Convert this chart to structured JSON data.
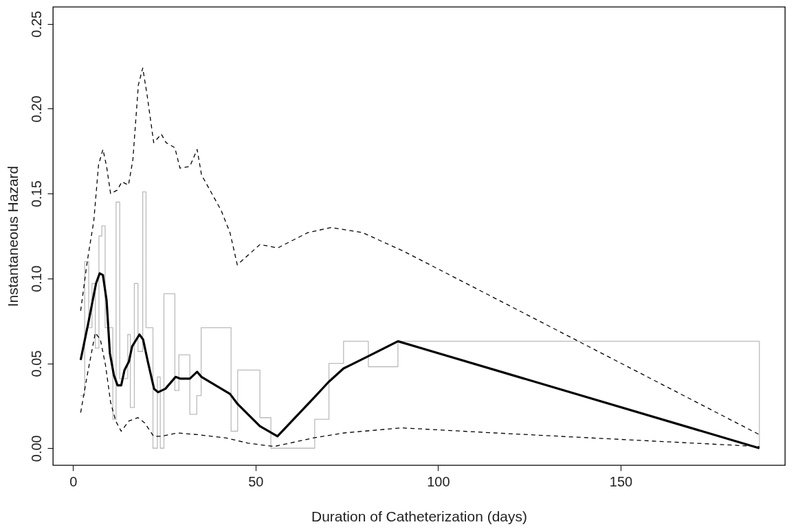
{
  "chart_data": {
    "type": "line",
    "xlabel": "Duration of Catheterization (days)",
    "ylabel": "Instantaneous Hazard",
    "xlim": [
      -5.5,
      195
    ],
    "xticks": [
      0,
      50,
      100,
      150
    ],
    "ylim": [
      -0.01,
      0.26
    ],
    "yticks": [
      {
        "value": 0,
        "label": "0.00"
      },
      {
        "value": 0.05,
        "label": "0.05"
      },
      {
        "value": 0.1,
        "label": "0.10"
      },
      {
        "value": 0.15,
        "label": "0.15"
      },
      {
        "value": 0.2,
        "label": "0.20"
      },
      {
        "value": 0.25,
        "label": "0.25"
      }
    ],
    "grid": false,
    "marker": "none",
    "series": [
      {
        "type": "step",
        "color": "#bbbbbb",
        "line_style": "solid",
        "x": [
          2.1,
          3.2,
          4.3,
          5.2,
          6.1,
          7.1,
          7.9,
          8.8,
          10.9,
          11.8,
          12.8,
          15.0,
          15.7,
          16.8,
          17.8,
          19.1,
          20.0,
          21.9,
          23.1,
          23.9,
          24.9,
          27.9,
          29.0,
          32.0,
          33.9,
          35.1,
          43.3,
          45.1,
          51.2,
          54.2,
          66.2,
          70.1,
          74.1,
          80.9,
          89.0,
          188
        ],
        "values": [
          0.031,
          0.11,
          0.071,
          0.097,
          0.059,
          0.125,
          0.131,
          0.071,
          0.017,
          0.145,
          0.041,
          0.067,
          0.024,
          0.097,
          0.057,
          0.151,
          0.071,
          0.0,
          0.042,
          0.0,
          0.091,
          0.034,
          0.055,
          0.02,
          0.031,
          0.071,
          0.01,
          0.046,
          0.018,
          0.0,
          0.017,
          0.05,
          0.063,
          0.048,
          0.063,
          0.0
        ]
      },
      {
        "color": "#000000",
        "line_style": "dashed",
        "x": [
          2.1,
          3.9,
          5.7,
          7.0,
          8.2,
          9.2,
          10.3,
          12.1,
          13.4,
          15.2,
          16.4,
          17.9,
          19.1,
          20.3,
          22.1,
          24.2,
          25.5,
          27.9,
          29.3,
          32.0,
          34.0,
          35.2,
          40.6,
          43.0,
          45.0,
          51.2,
          56.1,
          64.3,
          70.7,
          79.3,
          90.6,
          115.0,
          188
        ],
        "values": [
          0.081,
          0.11,
          0.134,
          0.167,
          0.176,
          0.166,
          0.15,
          0.152,
          0.157,
          0.155,
          0.17,
          0.214,
          0.224,
          0.208,
          0.18,
          0.185,
          0.18,
          0.177,
          0.165,
          0.166,
          0.176,
          0.161,
          0.14,
          0.127,
          0.108,
          0.12,
          0.118,
          0.127,
          0.13,
          0.127,
          0.116,
          0.089,
          0.008
        ]
      },
      {
        "color": "#000000",
        "line_style": "dashed",
        "x": [
          2.1,
          3.9,
          6.1,
          7.5,
          8.9,
          10.3,
          11.7,
          13.2,
          15.3,
          17.8,
          19.6,
          22.1,
          24.2,
          28.5,
          34.1,
          42.0,
          47.9,
          55.1,
          65.7,
          74.3,
          89.9,
          115.5,
          188
        ],
        "values": [
          0.021,
          0.043,
          0.068,
          0.064,
          0.049,
          0.027,
          0.016,
          0.01,
          0.016,
          0.018,
          0.015,
          0.007,
          0.007,
          0.009,
          0.008,
          0.006,
          0.003,
          0.001,
          0.006,
          0.009,
          0.012,
          0.009,
          0.001
        ]
      },
      {
        "color": "#000000",
        "line_style": "solid",
        "x": [
          2.1,
          4.3,
          6.3,
          7.3,
          8.2,
          9.2,
          10.1,
          11.2,
          12.2,
          13.2,
          14.1,
          15.3,
          16.2,
          18.2,
          19.2,
          20.5,
          22.2,
          23.3,
          25.3,
          28.1,
          29.3,
          32.0,
          34.0,
          35.2,
          43.0,
          45.1,
          51.2,
          56.0,
          66.1,
          70.0,
          74.1,
          80.7,
          89.0,
          188
        ],
        "values": [
          0.052,
          0.075,
          0.097,
          0.103,
          0.102,
          0.087,
          0.056,
          0.043,
          0.037,
          0.037,
          0.046,
          0.051,
          0.06,
          0.067,
          0.064,
          0.051,
          0.035,
          0.033,
          0.035,
          0.042,
          0.041,
          0.041,
          0.045,
          0.042,
          0.032,
          0.026,
          0.013,
          0.007,
          0.03,
          0.039,
          0.047,
          0.054,
          0.063,
          0.0
        ]
      }
    ]
  }
}
